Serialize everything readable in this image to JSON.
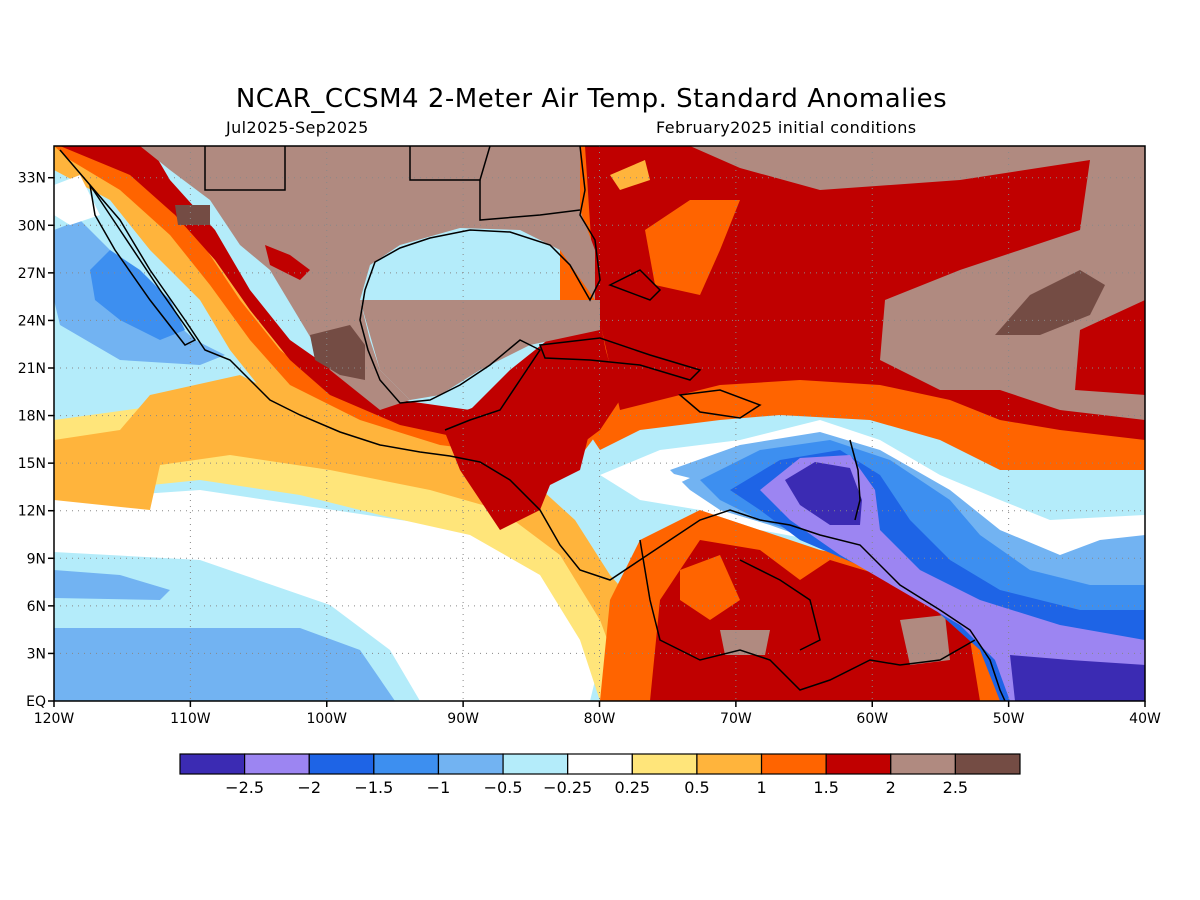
{
  "title": "NCAR_CCSM4 2-Meter Air Temp. Standard Anomalies",
  "subtitle_left": "Jul2025-Sep2025",
  "subtitle_right": "February2025 initial conditions",
  "map": {
    "lon_range": [
      -120,
      -40
    ],
    "lat_range": [
      0,
      35
    ],
    "lon_ticks": [
      {
        "value": -120,
        "label": "120W"
      },
      {
        "value": -110,
        "label": "110W"
      },
      {
        "value": -100,
        "label": "100W"
      },
      {
        "value": -90,
        "label": "90W"
      },
      {
        "value": -80,
        "label": "80W"
      },
      {
        "value": -70,
        "label": "70W"
      },
      {
        "value": -60,
        "label": "60W"
      },
      {
        "value": -50,
        "label": "50W"
      },
      {
        "value": -40,
        "label": "40W"
      }
    ],
    "lat_ticks": [
      {
        "value": 0,
        "label": "EQ"
      },
      {
        "value": 3,
        "label": "3N"
      },
      {
        "value": 6,
        "label": "6N"
      },
      {
        "value": 9,
        "label": "9N"
      },
      {
        "value": 12,
        "label": "12N"
      },
      {
        "value": 15,
        "label": "15N"
      },
      {
        "value": 18,
        "label": "18N"
      },
      {
        "value": 21,
        "label": "21N"
      },
      {
        "value": 24,
        "label": "24N"
      },
      {
        "value": 27,
        "label": "27N"
      },
      {
        "value": 30,
        "label": "30N"
      },
      {
        "value": 33,
        "label": "33N"
      }
    ],
    "grid": true
  },
  "colorbar": {
    "colors": [
      "#3b2bb3",
      "#9c85f2",
      "#1e64e6",
      "#3d8ff0",
      "#72b3f2",
      "#b4ecfa",
      "#ffffff",
      "#ffe57a",
      "#ffb43c",
      "#ff6400",
      "#c00000",
      "#b08a80",
      "#744c44"
    ],
    "labels": [
      "−2.5",
      "−2",
      "−1.5",
      "−1",
      "−0.5",
      "−0.25",
      "0.25",
      "0.5",
      "1",
      "1.5",
      "2",
      "2.5"
    ]
  }
}
